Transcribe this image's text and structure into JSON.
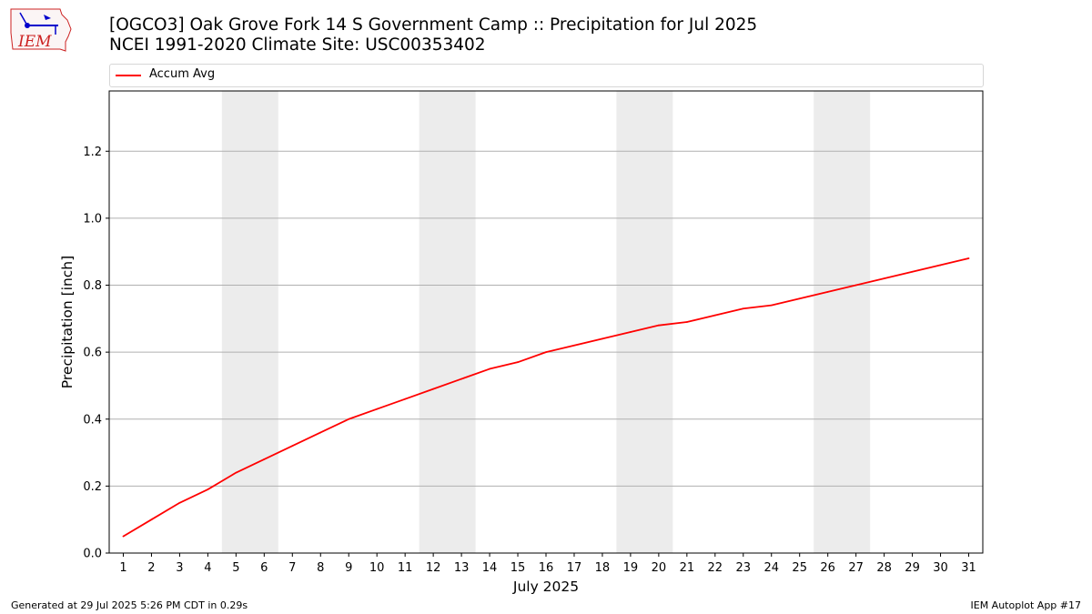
{
  "header": {
    "title_line1": "[OGCO3] Oak Grove Fork 14 S Government Camp :: Precipitation for Jul 2025",
    "title_line2": "NCEI 1991-2020 Climate Site: USC00353402"
  },
  "logo": {
    "text": "IEM"
  },
  "footer": {
    "left": "Generated at 29 Jul 2025 5:26 PM CDT in 0.29s",
    "right": "IEM Autoplot App #17"
  },
  "chart_data": {
    "type": "line",
    "title": "[OGCO3] Oak Grove Fork 14 S Government Camp :: Precipitation for Jul 2025",
    "xlabel": "July 2025",
    "ylabel": "Precipitation [inch]",
    "xlim": [
      0.5,
      31.5
    ],
    "ylim": [
      0,
      1.38
    ],
    "yticks": [
      0.0,
      0.2,
      0.4,
      0.6,
      0.8,
      1.0,
      1.2
    ],
    "ytick_labels": [
      "0.0",
      "0.2",
      "0.4",
      "0.6",
      "0.8",
      "1.0",
      "1.2"
    ],
    "xticks": [
      1,
      2,
      3,
      4,
      5,
      6,
      7,
      8,
      9,
      10,
      11,
      12,
      13,
      14,
      15,
      16,
      17,
      18,
      19,
      20,
      21,
      22,
      23,
      24,
      25,
      26,
      27,
      28,
      29,
      30,
      31
    ],
    "grid": "horizontal",
    "weekend_shading": [
      [
        4.5,
        6.5
      ],
      [
        11.5,
        13.5
      ],
      [
        18.5,
        20.5
      ],
      [
        25.5,
        27.5
      ]
    ],
    "legend": {
      "placement": "top",
      "entries": [
        "Accum Avg"
      ]
    },
    "series": [
      {
        "name": "Accum Avg",
        "color": "#ff0000",
        "x": [
          1,
          2,
          3,
          4,
          5,
          6,
          7,
          8,
          9,
          10,
          11,
          12,
          13,
          14,
          15,
          16,
          17,
          18,
          19,
          20,
          21,
          22,
          23,
          24,
          25,
          26,
          27,
          28,
          29,
          30,
          31
        ],
        "values": [
          0.05,
          0.1,
          0.15,
          0.19,
          0.24,
          0.28,
          0.32,
          0.36,
          0.4,
          0.43,
          0.46,
          0.49,
          0.52,
          0.55,
          0.57,
          0.6,
          0.62,
          0.64,
          0.66,
          0.68,
          0.69,
          0.71,
          0.73,
          0.74,
          0.76,
          0.78,
          0.8,
          0.82,
          0.84,
          0.86,
          0.88
        ]
      }
    ]
  }
}
